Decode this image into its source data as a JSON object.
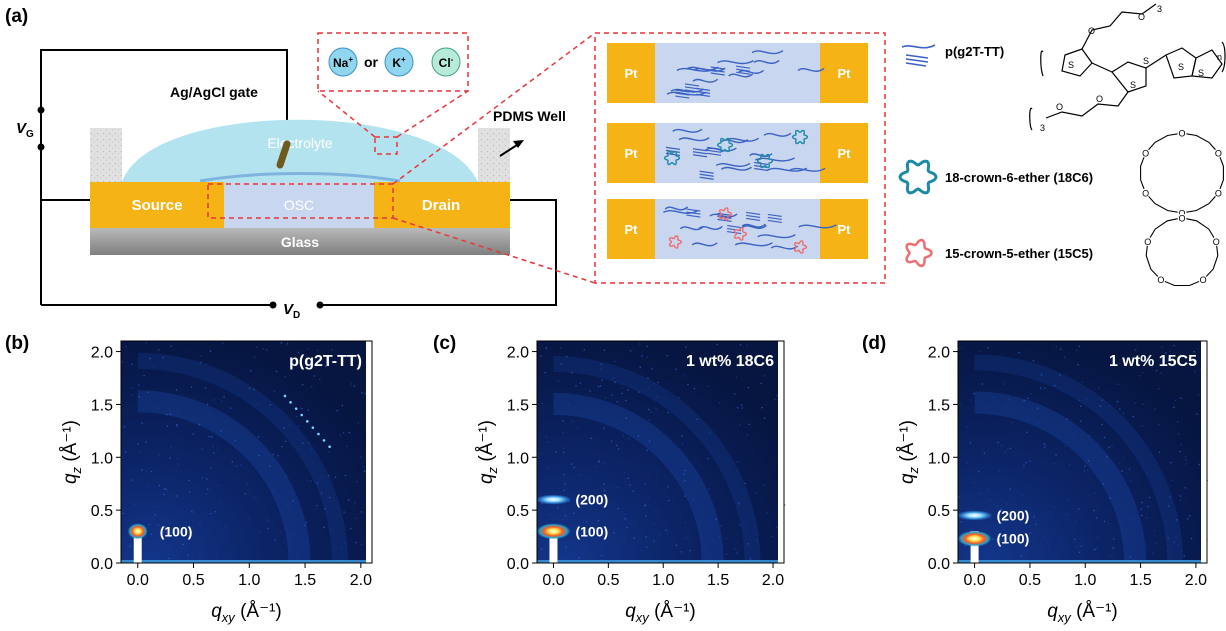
{
  "panel_a": {
    "label": "(a)",
    "gate_label": "Ag/AgCl gate",
    "vg_main": "V",
    "vg_sub": "G",
    "vd_main": "V",
    "vd_sub": "D",
    "electrolyte": "Electrolyte",
    "source": "Source",
    "drain": "Drain",
    "osc": "OSC",
    "glass": "Glass",
    "pdms": "PDMS Well",
    "ions": {
      "na": "Na",
      "na_sup": "+",
      "or": "or",
      "k": "K",
      "k_sup": "+",
      "cl": "Cl",
      "cl_sup": "-"
    },
    "electrode": "Pt",
    "legend": {
      "polymer": "p(g2T-TT)",
      "c18": "18-crown-6-ether (18C6)",
      "c15": "15-crown-5-ether (15C5)"
    },
    "structure_labels": {
      "o": "O",
      "s": "S",
      "sub3": "3",
      "subn": "n"
    },
    "colors": {
      "gold": "#f5b316",
      "electrolyte": "#b4e3f0",
      "channel": "#c9d6ef",
      "polymer": "#3b62c4",
      "c18": "#1d8aa6",
      "c15": "#ee6e70",
      "dash": "#e8343a",
      "glass": "#a9a9a9"
    }
  },
  "chart_data": [
    {
      "type": "heatmap",
      "panel_label": "(b)",
      "title": "p(g2T-TT)",
      "xlabel_main": "q",
      "xlabel_sub": "xy",
      "xlabel_unit": "(Å⁻¹)",
      "ylabel_main": "q",
      "ylabel_sub": "z",
      "ylabel_unit": "(Å⁻¹)",
      "xlim": [
        -0.15,
        2.1
      ],
      "ylim": [
        0,
        2.1
      ],
      "xticks": [
        0.0,
        0.5,
        1.0,
        1.5,
        2.0
      ],
      "xtick_labels": [
        "0.0",
        "0.5",
        "1.0",
        "1.5",
        "2.0"
      ],
      "yticks": [
        0.0,
        0.5,
        1.0,
        1.5,
        2.0
      ],
      "ytick_labels": [
        "0.0",
        "0.5",
        "1.0",
        "1.5",
        "2.0"
      ],
      "peaks": [
        {
          "label": "(100)",
          "qxy": 0.0,
          "qz": 0.3
        }
      ]
    },
    {
      "type": "heatmap",
      "panel_label": "(c)",
      "title": "1 wt% 18C6",
      "xlabel_main": "q",
      "xlabel_sub": "xy",
      "xlabel_unit": "(Å⁻¹)",
      "ylabel_main": "q",
      "ylabel_sub": "z",
      "ylabel_unit": "(Å⁻¹)",
      "xlim": [
        -0.15,
        2.1
      ],
      "ylim": [
        0,
        2.1
      ],
      "xticks": [
        0.0,
        0.5,
        1.0,
        1.5,
        2.0
      ],
      "xtick_labels": [
        "0.0",
        "0.5",
        "1.0",
        "1.5",
        "2.0"
      ],
      "yticks": [
        0.0,
        0.5,
        1.0,
        1.5,
        2.0
      ],
      "ytick_labels": [
        "0.0",
        "0.5",
        "1.0",
        "1.5",
        "2.0"
      ],
      "peaks": [
        {
          "label": "(200)",
          "qxy": 0.0,
          "qz": 0.6
        },
        {
          "label": "(100)",
          "qxy": 0.0,
          "qz": 0.3
        }
      ]
    },
    {
      "type": "heatmap",
      "panel_label": "(d)",
      "title": "1 wt% 15C5",
      "xlabel_main": "q",
      "xlabel_sub": "xy",
      "xlabel_unit": "(Å⁻¹)",
      "ylabel_main": "q",
      "ylabel_sub": "z",
      "ylabel_unit": "(Å⁻¹)",
      "xlim": [
        -0.15,
        2.1
      ],
      "ylim": [
        0,
        2.1
      ],
      "xticks": [
        0.0,
        0.5,
        1.0,
        1.5,
        2.0
      ],
      "xtick_labels": [
        "0.0",
        "0.5",
        "1.0",
        "1.5",
        "2.0"
      ],
      "yticks": [
        0.0,
        0.5,
        1.0,
        1.5,
        2.0
      ],
      "ytick_labels": [
        "0.0",
        "0.5",
        "1.0",
        "1.5",
        "2.0"
      ],
      "peaks": [
        {
          "label": "(200)",
          "qxy": 0.0,
          "qz": 0.45
        },
        {
          "label": "(100)",
          "qxy": 0.0,
          "qz": 0.23
        }
      ]
    }
  ]
}
